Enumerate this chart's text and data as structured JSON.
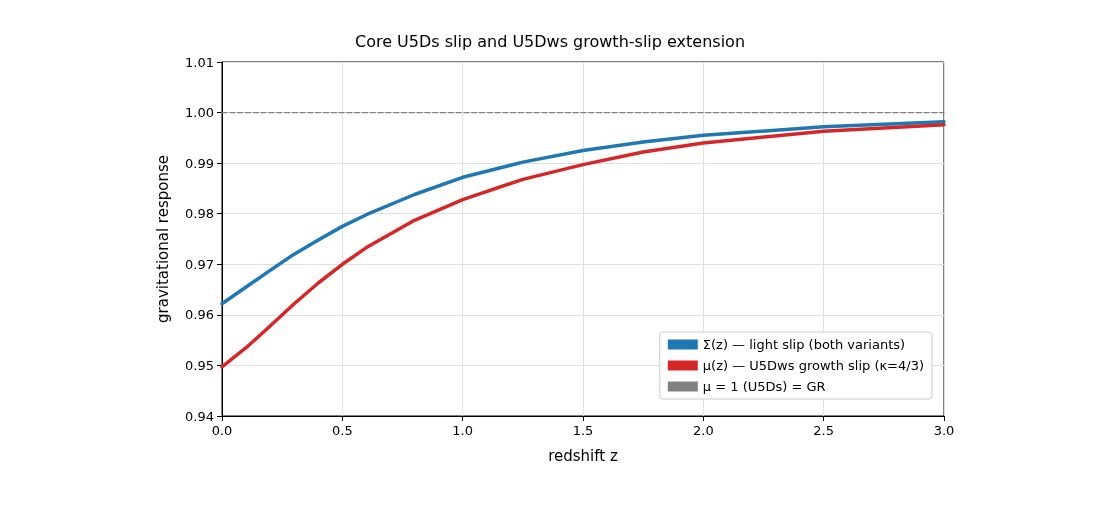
{
  "chart_data": {
    "type": "line",
    "title": "Core U5Ds slip and U5Dws growth-slip extension",
    "xlabel": "redshift z",
    "ylabel": "gravitational response",
    "x": [
      0,
      0.1,
      0.2,
      0.3,
      0.4,
      0.5,
      0.6,
      0.8,
      1.0,
      1.25,
      1.5,
      1.75,
      2.0,
      2.5,
      3.0
    ],
    "series": [
      {
        "name": "Σ(z) — light slip (both variants)",
        "color": "#1f77b4",
        "values": [
          0.9622,
          0.9655,
          0.9688,
          0.972,
          0.9748,
          0.9775,
          0.9798,
          0.9838,
          0.9872,
          0.9902,
          0.9925,
          0.9942,
          0.9955,
          0.9972,
          0.9982
        ]
      },
      {
        "name": "μ(z) — U5Dws growth slip (κ=4/3)",
        "color": "#d62728",
        "values": [
          0.9497,
          0.9535,
          0.9578,
          0.9622,
          0.9663,
          0.97,
          0.9733,
          0.9787,
          0.9828,
          0.9868,
          0.9897,
          0.9922,
          0.994,
          0.9963,
          0.9976
        ]
      },
      {
        "name": "μ = 1 (U5Ds) = GR",
        "color": "#808080",
        "line_style": "dashed",
        "x": [
          0,
          3
        ],
        "values": [
          1,
          1
        ]
      }
    ],
    "xlim": [
      0,
      3
    ],
    "xticks": [
      {
        "value": 0,
        "label": "0.0"
      },
      {
        "value": 0.5,
        "label": "0.5"
      },
      {
        "value": 1,
        "label": "1.0"
      },
      {
        "value": 1.5,
        "label": "1.5"
      },
      {
        "value": 2,
        "label": "2.0"
      },
      {
        "value": 2.5,
        "label": "2.5"
      },
      {
        "value": 3,
        "label": "3.0"
      }
    ],
    "ylim": [
      0.94,
      1.01
    ],
    "yticks": [
      0.94,
      0.95,
      0.96,
      0.97,
      0.98,
      0.99,
      {
        "value": 1,
        "label": "1.00"
      },
      1.01
    ],
    "grid": true,
    "legend": "bottom right",
    "marker": "none"
  }
}
